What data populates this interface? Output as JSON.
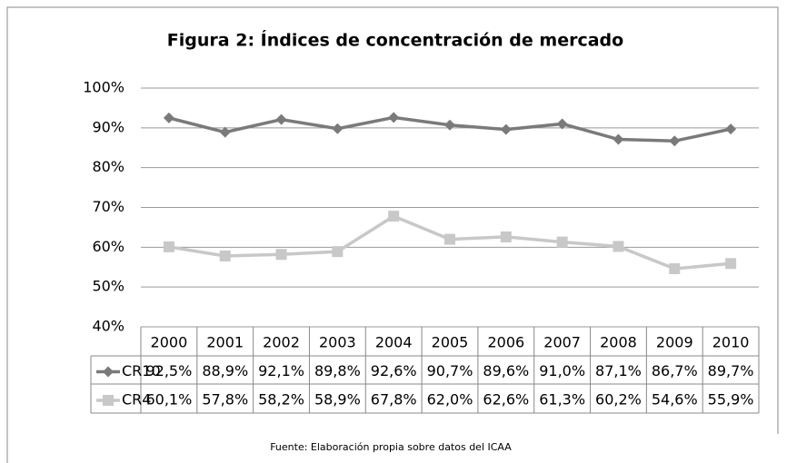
{
  "chart_data": {
    "type": "line",
    "title": "Figura 2: Índices de concentración de mercado",
    "source": "Fuente: Elaboración propia sobre datos del ICAA",
    "categories": [
      "2000",
      "2001",
      "2002",
      "2003",
      "2004",
      "2005",
      "2006",
      "2007",
      "2008",
      "2009",
      "2010"
    ],
    "series": [
      {
        "name": "CR10",
        "color": "#7a7a7a",
        "marker": "diamond",
        "values": [
          92.5,
          88.9,
          92.1,
          89.8,
          92.6,
          90.7,
          89.6,
          91.0,
          87.1,
          86.7,
          89.7
        ],
        "value_labels": [
          "92,5%",
          "88,9%",
          "92,1%",
          "89,8%",
          "92,6%",
          "90,7%",
          "89,6%",
          "91,0%",
          "87,1%",
          "86,7%",
          "89,7%"
        ]
      },
      {
        "name": "CR4",
        "color": "#c8c8c8",
        "marker": "square",
        "values": [
          60.1,
          57.8,
          58.2,
          58.9,
          67.8,
          62.0,
          62.6,
          61.3,
          60.2,
          54.6,
          55.9
        ],
        "value_labels": [
          "60,1%",
          "57,8%",
          "58,2%",
          "58,9%",
          "67,8%",
          "62,0%",
          "62,6%",
          "61,3%",
          "60,2%",
          "54,6%",
          "55,9%"
        ]
      }
    ],
    "ylim": [
      40,
      100
    ],
    "yticks": [
      {
        "value": 40,
        "label": "40%"
      },
      {
        "value": 50,
        "label": "50%"
      },
      {
        "value": 60,
        "label": "60%"
      },
      {
        "value": 70,
        "label": "70%"
      },
      {
        "value": 80,
        "label": "80%"
      },
      {
        "value": 90,
        "label": "90%"
      },
      {
        "value": 100,
        "label": "100%"
      }
    ],
    "grid": true,
    "data_table": true
  }
}
